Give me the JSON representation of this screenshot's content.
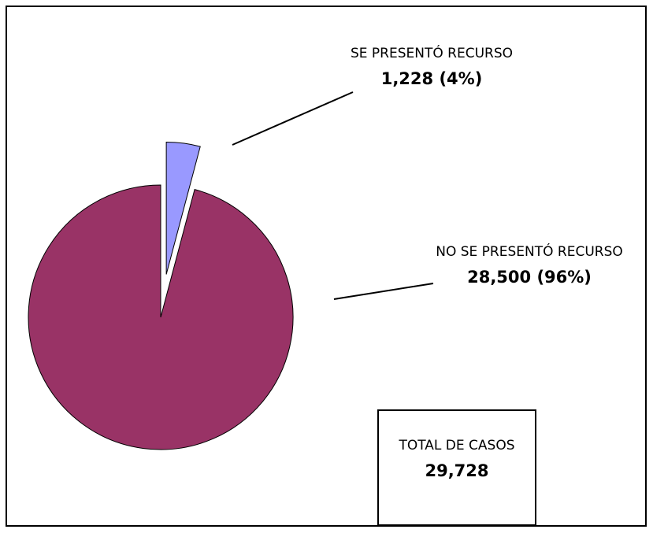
{
  "chart_data": {
    "type": "pie",
    "categories": [
      "SE PRESENTÓ RECURSO",
      "NO SE PRESENTÓ RECURSO"
    ],
    "values": [
      1228,
      28500
    ],
    "value_labels": [
      "1,228 (4%)",
      "28,500 (96%)"
    ],
    "colors": [
      "#9999ff",
      "#993366"
    ],
    "explode": [
      true,
      false
    ],
    "total": {
      "label": "TOTAL DE CASOS",
      "value": 29728,
      "value_label": "29,728"
    }
  }
}
